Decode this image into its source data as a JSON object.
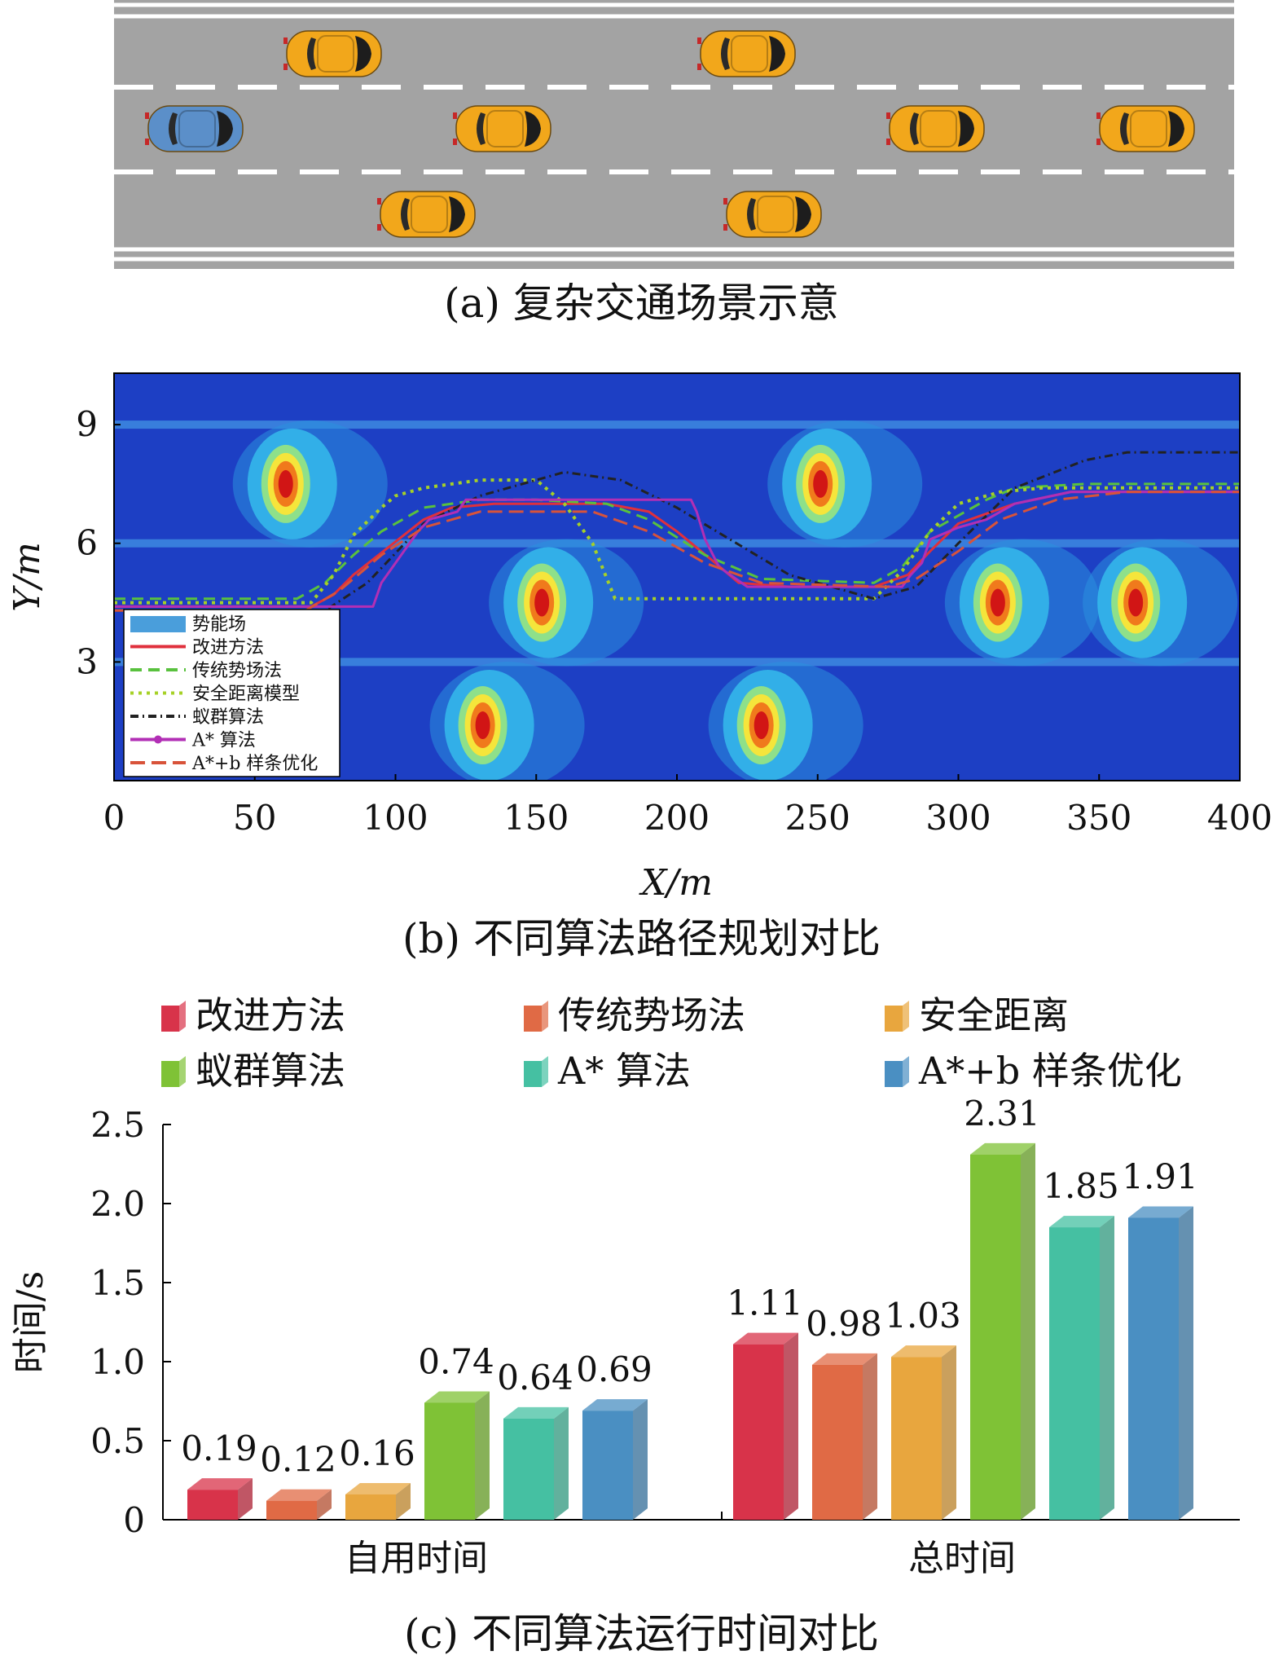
{
  "panel_a": {
    "caption": "(a) 复杂交通场景示意",
    "colors": {
      "road": "#a3a3a3",
      "lane_line": "#ffffff",
      "ego_car": "#5b8fc9",
      "other_car": "#f2a71b"
    }
  },
  "panel_b": {
    "caption": "(b) 不同算法路径规划对比",
    "legend": [
      {
        "label": "势能场",
        "color": "#4a9edb",
        "style": "patch"
      },
      {
        "label": "改进方法",
        "color": "#e0303c",
        "style": "solid"
      },
      {
        "label": "传统势场法",
        "color": "#59c13e",
        "style": "dashed"
      },
      {
        "label": "安全距离模型",
        "color": "#a6d126",
        "style": "dotted"
      },
      {
        "label": "蚁群算法",
        "color": "#222222",
        "style": "dashdot"
      },
      {
        "label": "A* 算法",
        "color": "#b22fb5",
        "style": "marker"
      },
      {
        "label": "A*+b 样条优化",
        "color": "#d8533a",
        "style": "longdash"
      }
    ],
    "colormap": {
      "background": "#1d3fc4",
      "halo": "#2ca8e8",
      "core": "#d11515"
    }
  },
  "panel_c": {
    "caption": "(c) 不同算法运行时间对比"
  },
  "chart_data": [
    {
      "type": "line",
      "xlabel": "X/m",
      "ylabel": "Y/m",
      "xlim": [
        0,
        400
      ],
      "ylim": [
        0,
        10.3
      ],
      "xticks": [
        "0",
        "50",
        "100",
        "150",
        "200",
        "250",
        "300",
        "350",
        "400"
      ],
      "yticks": [
        "3",
        "6",
        "9"
      ],
      "xtick_values": [
        0,
        50,
        100,
        150,
        200,
        250,
        300,
        350,
        400
      ],
      "ytick_values": [
        3,
        6,
        9
      ],
      "grid": false,
      "legend_position": "bottom-left",
      "obstacles": [
        {
          "x": 61,
          "y": 7.5
        },
        {
          "x": 152,
          "y": 4.5
        },
        {
          "x": 131,
          "y": 1.4
        },
        {
          "x": 230,
          "y": 1.4
        },
        {
          "x": 251,
          "y": 7.5
        },
        {
          "x": 314,
          "y": 4.5
        },
        {
          "x": 363,
          "y": 4.5
        }
      ],
      "series": [
        {
          "name": "改进方法",
          "x": [
            0,
            70,
            78,
            85,
            110,
            120,
            135,
            150,
            175,
            190,
            200,
            212,
            222,
            240,
            270,
            282,
            290,
            300,
            320,
            340,
            400
          ],
          "y": [
            4.4,
            4.4,
            4.7,
            5.2,
            6.6,
            6.9,
            7.0,
            7.0,
            7.0,
            6.8,
            6.3,
            5.6,
            5.0,
            4.9,
            4.9,
            5.2,
            5.8,
            6.5,
            7.0,
            7.3,
            7.3
          ]
        },
        {
          "name": "传统势场法",
          "x": [
            0,
            65,
            75,
            85,
            95,
            110,
            130,
            150,
            175,
            190,
            210,
            230,
            270,
            280,
            290,
            310,
            320,
            345,
            360,
            400
          ],
          "y": [
            4.6,
            4.6,
            5.0,
            5.7,
            6.3,
            6.9,
            7.1,
            7.1,
            7.0,
            6.6,
            5.7,
            5.1,
            5.0,
            5.4,
            6.3,
            7.1,
            7.4,
            7.5,
            7.5,
            7.5
          ]
        },
        {
          "name": "安全距离模型",
          "x": [
            0,
            70,
            78,
            85,
            95,
            100,
            110,
            130,
            140,
            150,
            160,
            170,
            178,
            270,
            280,
            290,
            300,
            315,
            330,
            400
          ],
          "y": [
            4.5,
            4.5,
            5.2,
            6.2,
            6.9,
            7.2,
            7.4,
            7.6,
            7.6,
            7.6,
            7.0,
            6.0,
            4.6,
            4.6,
            5.3,
            6.3,
            7.0,
            7.3,
            7.4,
            7.4
          ]
        },
        {
          "name": "蚁群算法",
          "x": [
            0,
            75,
            90,
            110,
            130,
            160,
            180,
            200,
            240,
            270,
            285,
            300,
            320,
            345,
            360,
            400
          ],
          "y": [
            4.3,
            4.3,
            5.0,
            6.5,
            7.2,
            7.8,
            7.6,
            6.9,
            5.2,
            4.6,
            4.9,
            6.0,
            7.4,
            8.1,
            8.3,
            8.3
          ]
        },
        {
          "name": "A* 算法",
          "x": [
            0,
            92,
            95,
            108,
            112,
            122,
            125,
            205,
            207,
            210,
            215,
            225,
            280,
            283,
            287,
            290,
            300,
            310,
            320,
            340,
            400
          ],
          "y": [
            4.4,
            4.4,
            5.0,
            6.3,
            6.6,
            6.8,
            7.1,
            7.1,
            6.8,
            6.1,
            5.4,
            4.9,
            4.9,
            5.2,
            5.5,
            6.1,
            6.4,
            6.6,
            7.0,
            7.3,
            7.3
          ]
        },
        {
          "name": "A*+b 样条优化",
          "x": [
            0,
            68,
            80,
            95,
            110,
            130,
            170,
            190,
            210,
            230,
            275,
            285,
            300,
            315,
            335,
            360,
            400
          ],
          "y": [
            4.3,
            4.3,
            4.8,
            5.7,
            6.4,
            6.8,
            6.8,
            6.3,
            5.5,
            5.0,
            4.9,
            5.1,
            5.8,
            6.6,
            7.1,
            7.3,
            7.3
          ]
        }
      ]
    },
    {
      "type": "bar",
      "categories": [
        "自用时间",
        "总时间"
      ],
      "ylabel": "时间/s",
      "ylim": [
        0,
        2.5
      ],
      "yticks": [
        "0",
        "0.5",
        "1.0",
        "1.5",
        "2.0",
        "2.5"
      ],
      "ytick_values": [
        0,
        0.5,
        1.0,
        1.5,
        2.0,
        2.5
      ],
      "grid": false,
      "legend_position": "top",
      "series": [
        {
          "name": "改进方法",
          "color": "#d8334a",
          "values": [
            0.19,
            1.11
          ],
          "labels": [
            "0.19",
            "1.11"
          ]
        },
        {
          "name": "传统势场法",
          "color": "#e06a45",
          "values": [
            0.12,
            0.98
          ],
          "labels": [
            "0.12",
            "0.98"
          ]
        },
        {
          "name": "安全距离",
          "color": "#e8a63e",
          "values": [
            0.16,
            1.03
          ],
          "labels": [
            "0.16",
            "1.03"
          ]
        },
        {
          "name": "蚁群算法",
          "color": "#7fc236",
          "values": [
            0.74,
            2.31
          ],
          "labels": [
            "0.74",
            "2.31"
          ]
        },
        {
          "name": "A* 算法",
          "color": "#45c0a2",
          "values": [
            0.64,
            1.85
          ],
          "labels": [
            "0.64",
            "1.85"
          ]
        },
        {
          "name": "A*+b 样条优化",
          "color": "#4a8fc2",
          "values": [
            0.69,
            1.91
          ],
          "labels": [
            "0.69",
            "1.91"
          ]
        }
      ]
    }
  ]
}
